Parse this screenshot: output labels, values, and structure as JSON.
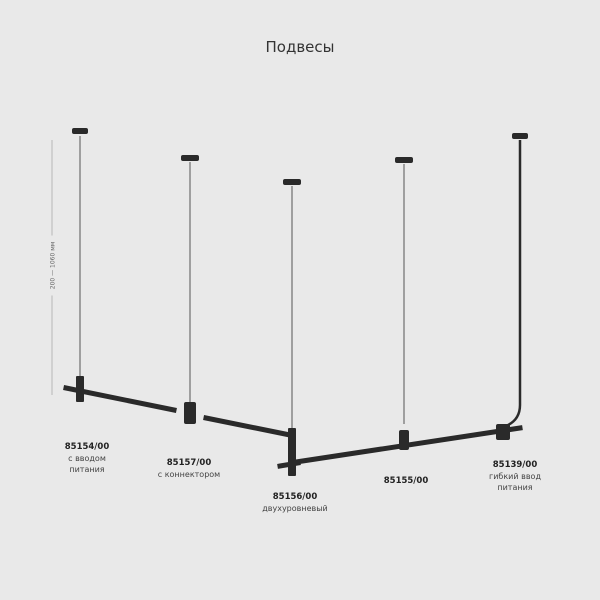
{
  "title": "Подвесы",
  "dimension_label": "200 — 1060 мм",
  "colors": {
    "background": "#e9e9e9",
    "fixture": "#2a2a2a",
    "cord": "#555555"
  },
  "products": [
    {
      "code": "85154/00",
      "desc": "с вводом питания"
    },
    {
      "code": "85157/00",
      "desc": "с коннектором"
    },
    {
      "code": "85156/00",
      "desc": "двухуровневый"
    },
    {
      "code": "85155/00",
      "desc": ""
    },
    {
      "code": "85139/00",
      "desc": "гибкий ввод питания"
    }
  ]
}
